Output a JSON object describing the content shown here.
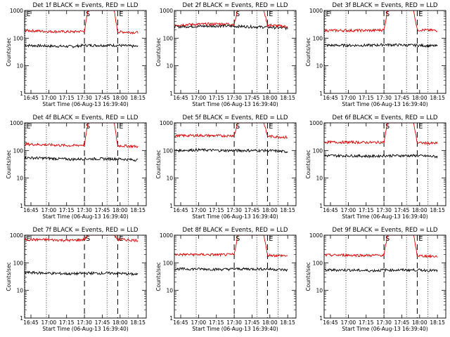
{
  "figure": {
    "ylabel": "Counts/sec",
    "xlabel": "Start Time (06-Aug-13 16:39:40)",
    "x_ticks": [
      "16:45",
      "17:00",
      "17:15",
      "17:30",
      "17:45",
      "18:00",
      "18:15"
    ],
    "y_ticks": [
      "1",
      "10",
      "100",
      "1000"
    ],
    "colors": {
      "events": "#000000",
      "lld": "#dd0000",
      "axes": "#000000"
    }
  },
  "chart_data": [
    {
      "type": "line",
      "title": "Det 1f BLACK = Events, RED = LLD",
      "ylim": [
        1,
        1000
      ],
      "yscale": "log",
      "xlabel": "Start Time (06-Aug-13 16:39:40)",
      "ylabel": "Counts/sec",
      "markers": [
        {
          "label": "E",
          "time": "16:40",
          "style": "dotted"
        },
        {
          "label": "S",
          "time": "17:30",
          "style": "dashed"
        },
        {
          "label": "E",
          "time": "17:58",
          "style": "dashed"
        }
      ],
      "dotted_lines": [
        "16:40",
        "16:58",
        "17:49",
        "18:07"
      ],
      "series": [
        {
          "name": "BLACK = Events",
          "color": "#000000",
          "x": [
            "16:40",
            "17:00",
            "17:20",
            "17:30",
            "17:58",
            "18:15"
          ],
          "y": [
            55,
            52,
            50,
            55,
            55,
            50
          ]
        },
        {
          "name": "RED = LLD",
          "color": "#dd0000",
          "x": [
            "16:40",
            "17:00",
            "17:20",
            "17:30",
            "17:33",
            "17:55",
            "17:58",
            "18:15"
          ],
          "y": [
            190,
            175,
            170,
            180,
            1000,
            1000,
            170,
            160
          ]
        }
      ]
    },
    {
      "type": "line",
      "title": "Det 2f BLACK = Events, RED = LLD",
      "ylim": [
        1,
        1000
      ],
      "yscale": "log",
      "xlabel": "Start Time (06-Aug-13 16:39:40)",
      "ylabel": "Counts/sec",
      "markers": [
        {
          "label": "S",
          "time": "17:30",
          "style": "dashed"
        },
        {
          "label": "E",
          "time": "17:58",
          "style": "dashed"
        }
      ],
      "dotted_lines": [
        "16:58",
        "17:49",
        "18:07"
      ],
      "series": [
        {
          "name": "BLACK = Events",
          "color": "#000000",
          "x": [
            "16:40",
            "17:00",
            "17:20",
            "17:30",
            "17:58",
            "18:15"
          ],
          "y": [
            260,
            270,
            280,
            270,
            250,
            230
          ]
        },
        {
          "name": "RED = LLD",
          "color": "#dd0000",
          "x": [
            "16:40",
            "17:00",
            "17:20",
            "17:30",
            "17:33",
            "17:55",
            "17:58",
            "18:15"
          ],
          "y": [
            300,
            320,
            330,
            320,
            1000,
            1000,
            300,
            260
          ]
        }
      ]
    },
    {
      "type": "line",
      "title": "Det 3f BLACK = Events, RED = LLD",
      "ylim": [
        1,
        1000
      ],
      "yscale": "log",
      "xlabel": "Start Time (06-Aug-13 16:39:40)",
      "ylabel": "Counts/sec",
      "markers": [
        {
          "label": "E",
          "time": "16:40",
          "style": "dotted"
        },
        {
          "label": "S",
          "time": "17:30",
          "style": "dashed"
        },
        {
          "label": "E",
          "time": "17:58",
          "style": "dashed"
        }
      ],
      "dotted_lines": [
        "16:40",
        "16:58",
        "17:49",
        "18:07"
      ],
      "series": [
        {
          "name": "BLACK = Events",
          "color": "#000000",
          "x": [
            "16:40",
            "17:00",
            "17:20",
            "17:30",
            "17:58",
            "18:15"
          ],
          "y": [
            55,
            55,
            55,
            58,
            55,
            52
          ]
        },
        {
          "name": "RED = LLD",
          "color": "#dd0000",
          "x": [
            "16:40",
            "17:00",
            "17:20",
            "17:30",
            "17:33",
            "17:55",
            "17:58",
            "18:15"
          ],
          "y": [
            190,
            190,
            190,
            200,
            1000,
            1000,
            200,
            190
          ]
        }
      ]
    },
    {
      "type": "line",
      "title": "Det 4f BLACK = Events, RED = LLD",
      "ylim": [
        1,
        1000
      ],
      "yscale": "log",
      "xlabel": "Start Time (06-Aug-13 16:39:40)",
      "ylabel": "Counts/sec",
      "markers": [
        {
          "label": "E",
          "time": "16:40",
          "style": "dotted"
        },
        {
          "label": "S",
          "time": "17:30",
          "style": "dashed"
        },
        {
          "label": "E",
          "time": "17:58",
          "style": "dashed"
        }
      ],
      "dotted_lines": [
        "16:40",
        "16:58",
        "17:49",
        "18:07"
      ],
      "series": [
        {
          "name": "BLACK = Events",
          "color": "#000000",
          "x": [
            "16:40",
            "17:00",
            "17:20",
            "17:30",
            "17:58",
            "18:15"
          ],
          "y": [
            55,
            52,
            48,
            50,
            50,
            45
          ]
        },
        {
          "name": "RED = LLD",
          "color": "#dd0000",
          "x": [
            "16:40",
            "17:00",
            "17:20",
            "17:30",
            "17:33",
            "17:55",
            "17:58",
            "18:15"
          ],
          "y": [
            170,
            160,
            150,
            160,
            1000,
            1000,
            150,
            140
          ]
        }
      ]
    },
    {
      "type": "line",
      "title": "Det 5f BLACK = Events, RED = LLD",
      "ylim": [
        1,
        1000
      ],
      "yscale": "log",
      "xlabel": "Start Time (06-Aug-13 16:39:40)",
      "ylabel": "Counts/sec",
      "markers": [
        {
          "label": "S",
          "time": "17:30",
          "style": "dashed"
        },
        {
          "label": "E",
          "time": "17:58",
          "style": "dashed"
        }
      ],
      "dotted_lines": [
        "16:58",
        "17:49",
        "18:07"
      ],
      "series": [
        {
          "name": "BLACK = Events",
          "color": "#000000",
          "x": [
            "16:40",
            "17:00",
            "17:20",
            "17:30",
            "17:58",
            "18:15"
          ],
          "y": [
            100,
            105,
            100,
            100,
            100,
            90
          ]
        },
        {
          "name": "RED = LLD",
          "color": "#dd0000",
          "x": [
            "16:40",
            "17:00",
            "17:20",
            "17:30",
            "17:33",
            "17:55",
            "17:58",
            "18:15"
          ],
          "y": [
            340,
            350,
            340,
            350,
            1000,
            1000,
            330,
            300
          ]
        }
      ]
    },
    {
      "type": "line",
      "title": "Det 6f BLACK = Events, RED = LLD",
      "ylim": [
        1,
        1000
      ],
      "yscale": "log",
      "xlabel": "Start Time (06-Aug-13 16:39:40)",
      "ylabel": "Counts/sec",
      "markers": [
        {
          "label": "S",
          "time": "17:30",
          "style": "dashed"
        },
        {
          "label": "E",
          "time": "17:58",
          "style": "dashed"
        }
      ],
      "dotted_lines": [
        "16:58",
        "17:49",
        "18:07"
      ],
      "series": [
        {
          "name": "BLACK = Events",
          "color": "#000000",
          "x": [
            "16:40",
            "17:00",
            "17:20",
            "17:30",
            "17:58",
            "18:15"
          ],
          "y": [
            65,
            65,
            62,
            65,
            65,
            60
          ]
        },
        {
          "name": "RED = LLD",
          "color": "#dd0000",
          "x": [
            "16:40",
            "17:00",
            "17:20",
            "17:30",
            "17:33",
            "17:55",
            "17:58",
            "18:15"
          ],
          "y": [
            200,
            200,
            195,
            200,
            1000,
            1000,
            190,
            180
          ]
        }
      ]
    },
    {
      "type": "line",
      "title": "Det 7f BLACK = Events, RED = LLD",
      "ylim": [
        1,
        1000
      ],
      "yscale": "log",
      "xlabel": "Start Time (06-Aug-13 16:39:40)",
      "ylabel": "Counts/sec",
      "markers": [
        {
          "label": "E",
          "time": "16:40",
          "style": "dotted"
        },
        {
          "label": "S",
          "time": "17:30",
          "style": "dashed"
        },
        {
          "label": "E",
          "time": "17:58",
          "style": "dashed"
        }
      ],
      "dotted_lines": [
        "16:40",
        "16:58",
        "17:49",
        "18:07"
      ],
      "series": [
        {
          "name": "BLACK = Events",
          "color": "#000000",
          "x": [
            "16:40",
            "17:00",
            "17:20",
            "17:30",
            "17:58",
            "18:15"
          ],
          "y": [
            45,
            42,
            40,
            42,
            42,
            38
          ]
        },
        {
          "name": "RED = LLD",
          "color": "#dd0000",
          "x": [
            "16:40",
            "17:00",
            "17:20",
            "17:30",
            "17:33",
            "17:55",
            "17:58",
            "18:15"
          ],
          "y": [
            700,
            680,
            650,
            700,
            1000,
            1000,
            700,
            650
          ]
        }
      ]
    },
    {
      "type": "line",
      "title": "Det 8f BLACK = Events, RED = LLD",
      "ylim": [
        1,
        1000
      ],
      "yscale": "log",
      "xlabel": "Start Time (06-Aug-13 16:39:40)",
      "ylabel": "Counts/sec",
      "markers": [
        {
          "label": "S",
          "time": "17:30",
          "style": "dashed"
        },
        {
          "label": "E",
          "time": "17:58",
          "style": "dashed"
        }
      ],
      "dotted_lines": [
        "16:58",
        "17:49",
        "18:07"
      ],
      "series": [
        {
          "name": "BLACK = Events",
          "color": "#000000",
          "x": [
            "16:40",
            "17:00",
            "17:20",
            "17:30",
            "17:58",
            "18:15"
          ],
          "y": [
            60,
            60,
            58,
            60,
            60,
            55
          ]
        },
        {
          "name": "RED = LLD",
          "color": "#dd0000",
          "x": [
            "16:40",
            "17:00",
            "17:20",
            "17:30",
            "17:33",
            "17:55",
            "17:58",
            "18:15"
          ],
          "y": [
            200,
            200,
            195,
            200,
            1000,
            1000,
            190,
            180
          ]
        }
      ]
    },
    {
      "type": "line",
      "title": "Det 9f BLACK = Events, RED = LLD",
      "ylim": [
        1,
        1000
      ],
      "yscale": "log",
      "xlabel": "Start Time (06-Aug-13 16:39:40)",
      "ylabel": "Counts/sec",
      "markers": [
        {
          "label": "S",
          "time": "17:30",
          "style": "dashed"
        },
        {
          "label": "E",
          "time": "17:58",
          "style": "dashed"
        }
      ],
      "dotted_lines": [
        "16:58",
        "17:49",
        "18:07"
      ],
      "series": [
        {
          "name": "BLACK = Events",
          "color": "#000000",
          "x": [
            "16:40",
            "17:00",
            "17:20",
            "17:30",
            "17:58",
            "18:15"
          ],
          "y": [
            55,
            55,
            52,
            55,
            55,
            52
          ]
        },
        {
          "name": "RED = LLD",
          "color": "#dd0000",
          "x": [
            "16:40",
            "17:00",
            "17:20",
            "17:30",
            "17:33",
            "17:55",
            "17:58",
            "18:15"
          ],
          "y": [
            190,
            190,
            185,
            190,
            1000,
            1000,
            180,
            170
          ]
        }
      ]
    }
  ]
}
